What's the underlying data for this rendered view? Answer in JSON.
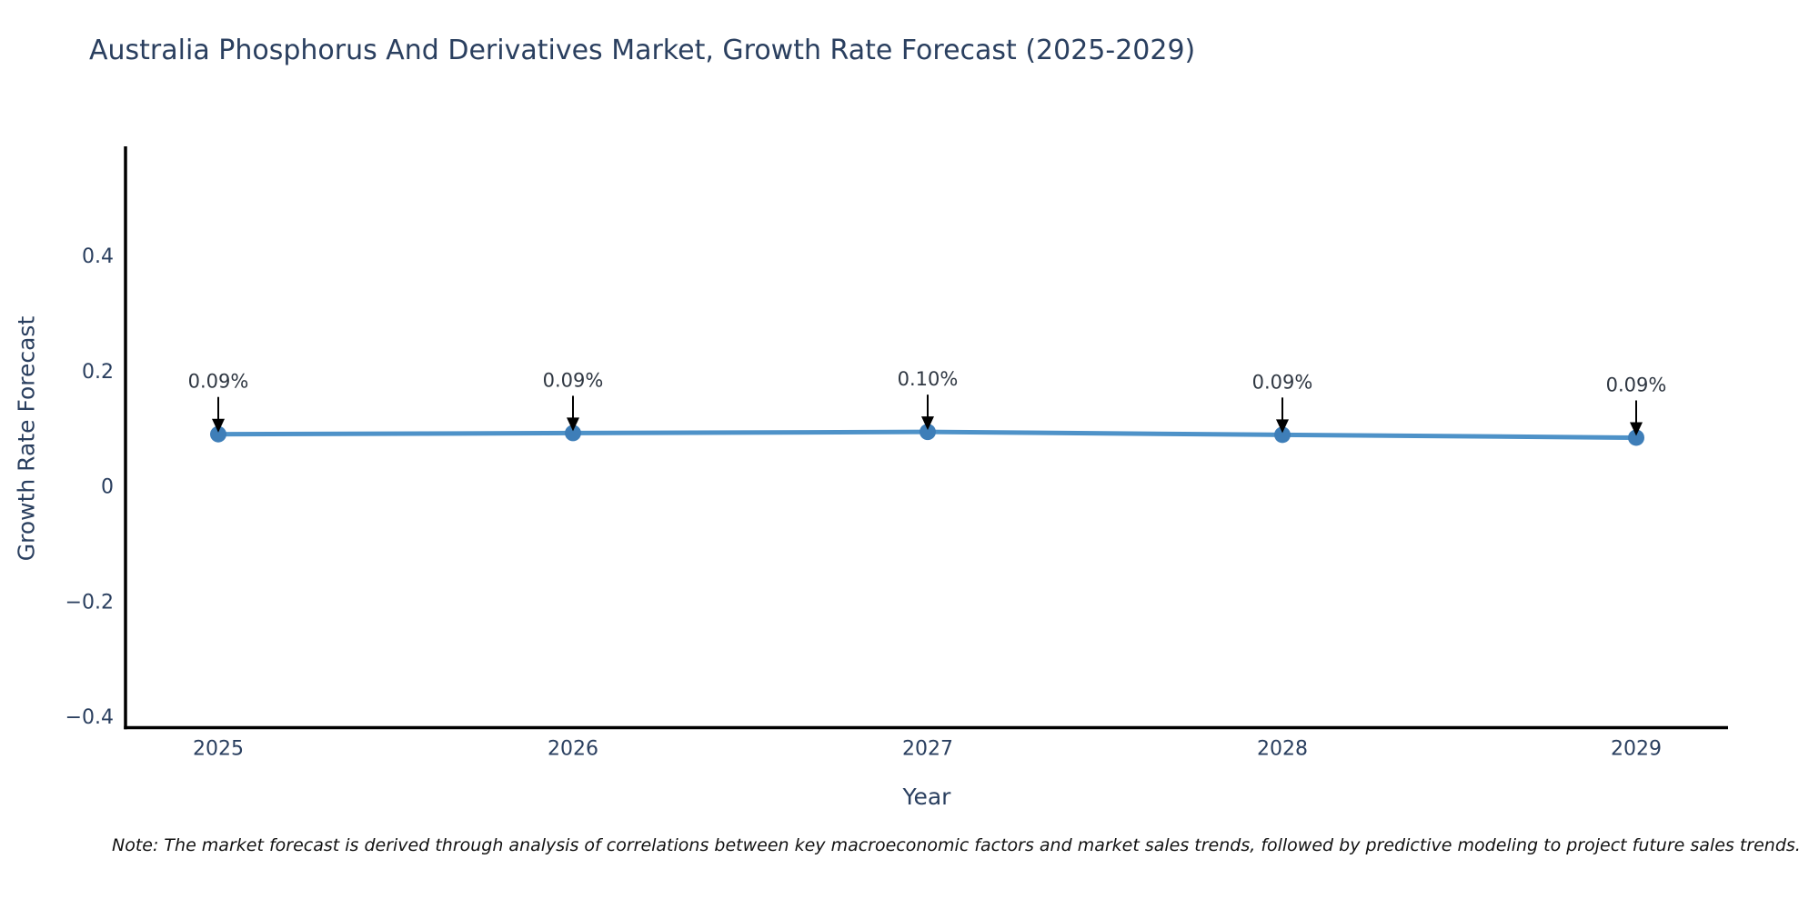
{
  "chart_data": {
    "type": "line",
    "title": "Australia Phosphorus And Derivatives Market, Growth Rate Forecast (2025-2029)",
    "categories": [
      "2025",
      "2026",
      "2027",
      "2028",
      "2029"
    ],
    "series": [
      {
        "name": "Growth Rate Forecast",
        "values": [
          0.09,
          0.09,
          0.1,
          0.09,
          0.09
        ],
        "values_plot": [
          0.092,
          0.094,
          0.096,
          0.091,
          0.086
        ],
        "point_labels": [
          "0.09%",
          "0.09%",
          "0.10%",
          "0.09%",
          "0.09%"
        ]
      }
    ],
    "xlabel": "Year",
    "ylabel": "Growth Rate Forecast",
    "yticks": {
      "values": [
        0.4,
        0.2,
        0,
        -0.2,
        -0.4
      ],
      "labels": [
        "0.4",
        "0.2",
        "0",
        "−0.2",
        "−0.4"
      ]
    },
    "ylim": [
      -0.41,
      0.59
    ],
    "grid": false,
    "legend": "none",
    "annotations_arrow": "down",
    "colors": {
      "line": "#4e92c8",
      "marker": "#3e7eb8",
      "arrow": "#000000",
      "axis_text": "#2a3f5f",
      "annotation_text": "#2f3742",
      "spine": "#000000",
      "background": "#ffffff"
    }
  },
  "note": "Note: The market forecast is derived through analysis of correlations between key macroeconomic factors and market sales trends, followed by predictive modeling to project future sales trends."
}
